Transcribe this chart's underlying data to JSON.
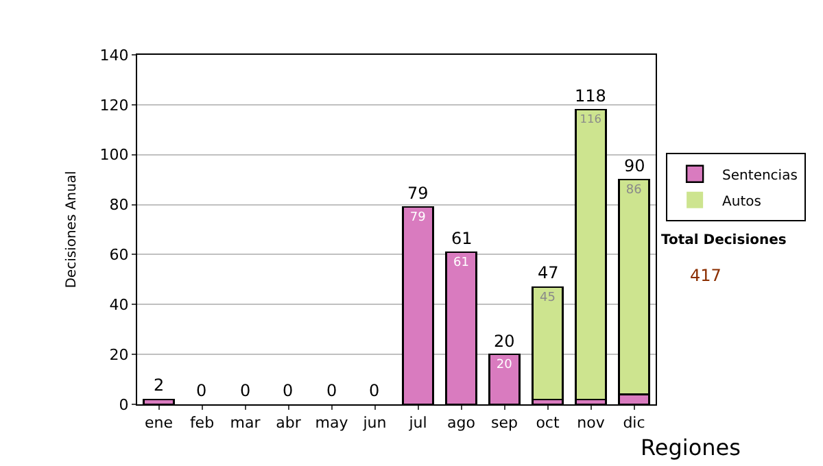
{
  "chart_data": {
    "type": "bar",
    "stacked": true,
    "ylabel": "Decisiones Anual",
    "categories": [
      "ene",
      "feb",
      "mar",
      "abr",
      "may",
      "jun",
      "jul",
      "ago",
      "sep",
      "oct",
      "nov",
      "dic"
    ],
    "series": [
      {
        "name": "Sentencias",
        "color": "#d97bbf",
        "values": [
          2,
          0,
          0,
          0,
          0,
          0,
          79,
          61,
          20,
          2,
          2,
          4
        ],
        "value_labels": [
          null,
          null,
          null,
          null,
          null,
          null,
          "79",
          "61",
          "20",
          null,
          null,
          null
        ]
      },
      {
        "name": "Autos",
        "color": "#cde48f",
        "values": [
          0,
          0,
          0,
          0,
          0,
          0,
          0,
          0,
          0,
          45,
          116,
          86
        ],
        "value_labels": [
          null,
          null,
          null,
          null,
          null,
          null,
          null,
          null,
          null,
          "45",
          "116",
          "86"
        ]
      }
    ],
    "totals": [
      "2",
      "0",
      "0",
      "0",
      "0",
      "0",
      "79",
      "61",
      "20",
      "47",
      "118",
      "90"
    ],
    "ylim": [
      0,
      140
    ],
    "yticks": [
      0,
      20,
      40,
      60,
      80,
      100,
      120,
      140
    ],
    "grid": "y",
    "legend": "right",
    "annotations": [
      "Total Decisiones",
      "417",
      "Regiones"
    ]
  }
}
